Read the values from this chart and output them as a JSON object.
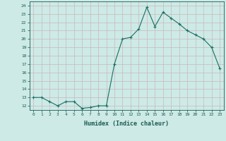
{
  "x": [
    0,
    1,
    2,
    3,
    4,
    5,
    6,
    7,
    8,
    9,
    10,
    11,
    12,
    13,
    14,
    15,
    16,
    17,
    18,
    19,
    20,
    21,
    22,
    23
  ],
  "y": [
    13.0,
    13.0,
    12.5,
    12.0,
    12.5,
    12.5,
    11.7,
    11.8,
    12.0,
    12.0,
    17.0,
    20.0,
    20.2,
    21.2,
    23.8,
    21.5,
    23.2,
    22.5,
    21.8,
    21.0,
    20.5,
    20.0,
    19.0,
    16.5
  ],
  "xlabel": "Humidex (Indice chaleur)",
  "xlim": [
    -0.5,
    23.5
  ],
  "ylim": [
    11.5,
    24.5
  ],
  "yticks": [
    12,
    13,
    14,
    15,
    16,
    17,
    18,
    19,
    20,
    21,
    22,
    23,
    24
  ],
  "xticks": [
    0,
    1,
    2,
    3,
    4,
    5,
    6,
    7,
    8,
    9,
    10,
    11,
    12,
    13,
    14,
    15,
    16,
    17,
    18,
    19,
    20,
    21,
    22,
    23
  ],
  "line_color": "#1a6e62",
  "marker": "+",
  "bg_color": "#cdeae7",
  "grid_color": "#c8b8b8",
  "font_color": "#1a5a50",
  "spine_color": "#1a5a50"
}
